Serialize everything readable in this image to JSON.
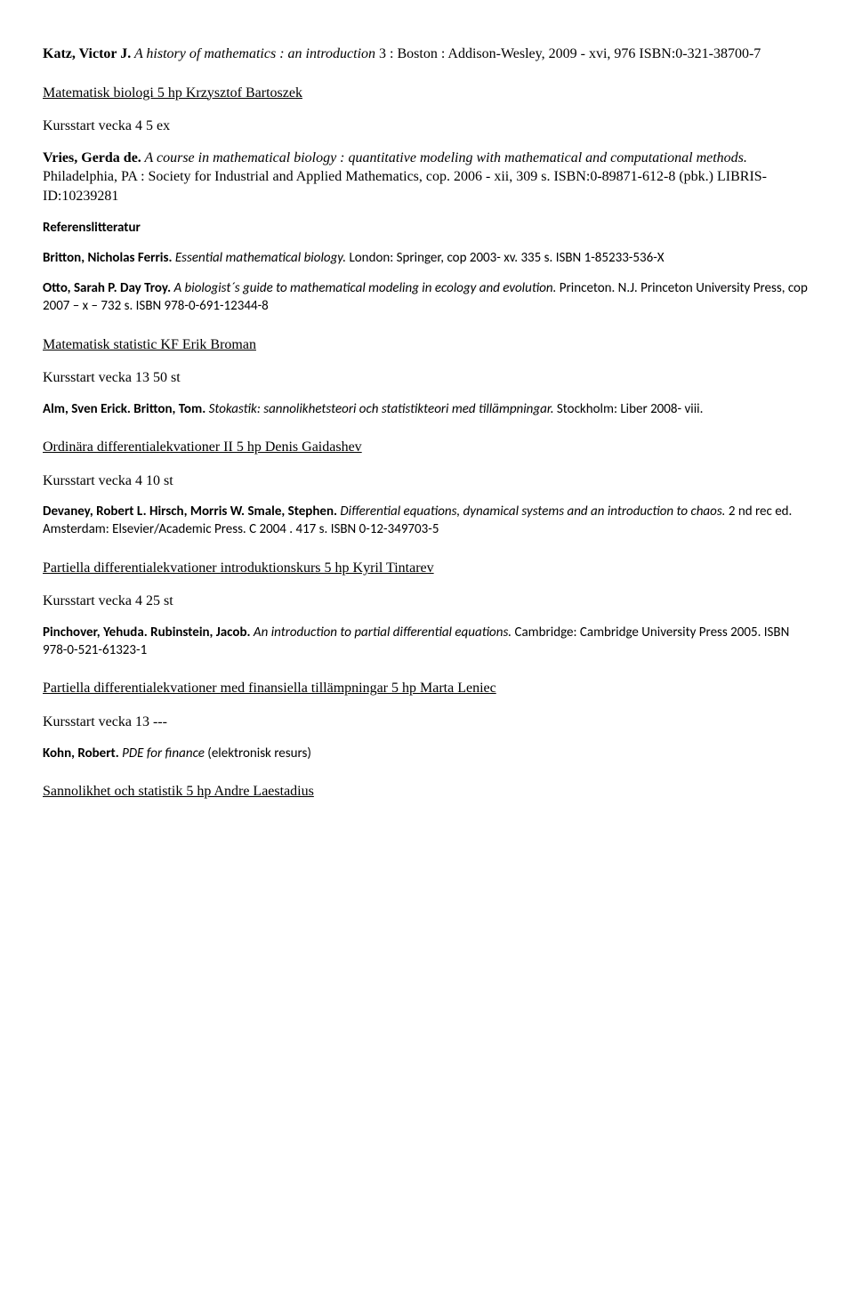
{
  "intro_entry": {
    "author": "Katz, Victor J.",
    "title": " A history of mathematics : an introduction",
    "rest": " 3 : Boston : Addison-Wesley, 2009 - xvi, 976 ISBN:0-321-38700-7"
  },
  "sections": [
    {
      "title": "Matematisk biologi 5 hp Krzysztof Bartoszek",
      "kursstart": "Kursstart vecka 4 5 ex",
      "entries": [
        {
          "author": "Vries, Gerda de.",
          "title": " A course in mathematical biology : quantitative modeling with mathematical and computational methods.",
          "rest": " Philadelphia, PA : Society for Industrial and Applied Mathematics, cop. 2006 - xii, 309 s. ISBN:0-89871-612-8 (pbk.)  LIBRIS-ID:10239281"
        }
      ],
      "ref_label": "Referenslitteratur",
      "ref_entries": [
        {
          "author": "Britton, Nicholas Ferris.",
          "title": " Essential mathematical biology.",
          "rest": " London: Springer, cop 2003- xv. 335 s. ISBN 1-85233-536-X"
        },
        {
          "author": "Otto, Sarah P. Day Troy.",
          "title": " A biologist´s guide to mathematical modeling in ecology and evolution.",
          "rest": " Princeton. N.J. Princeton University Press, cop 2007 – x – 732 s. ISBN 978-0-691-12344-8"
        }
      ]
    },
    {
      "title": "Matematisk statistic KF Erik Broman",
      "kursstart": "Kursstart vecka 13 50 st",
      "entries_sans": [
        {
          "author": "Alm, Sven Erick. Britton, Tom.",
          "title": " Stokastik: sannolikhetsteori och statistikteori med tillämpningar.",
          "rest": " Stockholm: Liber 2008- viii."
        }
      ]
    },
    {
      "title": "Ordinära differentialekvationer II 5 hp Denis Gaidashev",
      "kursstart": "Kursstart vecka 4 10 st",
      "entries_sans": [
        {
          "author": "Devaney, Robert L. Hirsch, Morris W. Smale, Stephen.",
          "title": " Differential equations, dynamical systems and an introduction to chaos.",
          "rest": " 2 nd rec ed. Amsterdam: Elsevier/Academic Press. C 2004 . 417 s. ISBN 0-12-349703-5"
        }
      ]
    },
    {
      "title": "Partiella differentialekvationer introduktionskurs 5 hp Kyril Tintarev",
      "kursstart": "Kursstart vecka 4 25 st",
      "entries_sans": [
        {
          "author": "Pinchover, Yehuda. Rubinstein, Jacob.",
          "title": " An introduction to partial differential equations.",
          "rest": " Cambridge: Cambridge University Press 2005. ISBN 978-0-521-61323-1"
        }
      ]
    },
    {
      "title": "Partiella differentialekvationer med finansiella tillämpningar 5 hp Marta Leniec",
      "kursstart": "Kursstart vecka 13 ---",
      "entries_sans": [
        {
          "author": "Kohn, Robert.",
          "title": " PDE for finance ",
          "rest": "(elektronisk resurs)"
        }
      ]
    },
    {
      "title": "Sannolikhet och statistik 5 hp Andre Laestadius"
    }
  ]
}
